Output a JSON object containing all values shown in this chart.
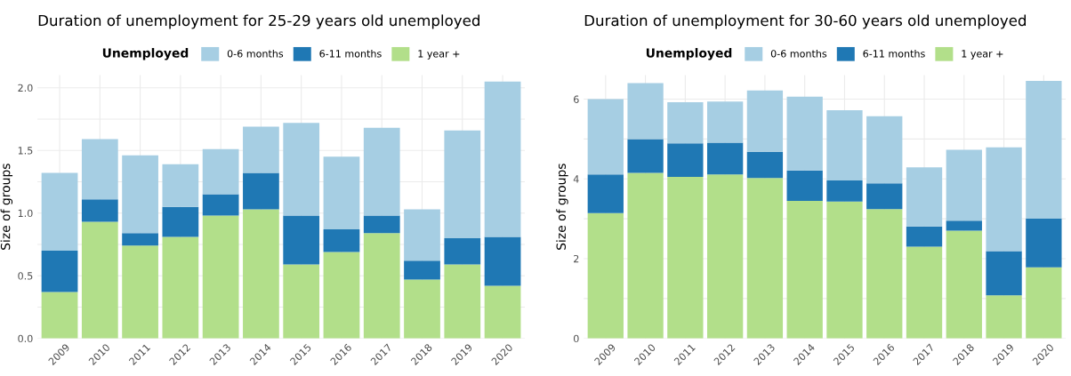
{
  "chart_data": [
    {
      "type": "bar",
      "title": "Duration of unemployment for 25-29 years old unemployed",
      "ylabel": "Size of groups",
      "legend_title": "Unemployed",
      "legend": "top",
      "stacked": true,
      "grid": true,
      "categories": [
        "2009",
        "2010",
        "2011",
        "2012",
        "2013",
        "2014",
        "2015",
        "2016",
        "2017",
        "2018",
        "2019",
        "2020"
      ],
      "series": [
        {
          "name": "1 year +",
          "color": "#b2df8a",
          "values": [
            0.37,
            0.93,
            0.74,
            0.81,
            0.98,
            1.03,
            0.59,
            0.69,
            0.84,
            0.47,
            0.59,
            0.42
          ]
        },
        {
          "name": "6-11 months",
          "color": "#1f78b4",
          "values": [
            0.33,
            0.18,
            0.1,
            0.24,
            0.17,
            0.29,
            0.39,
            0.18,
            0.14,
            0.15,
            0.21,
            0.39
          ]
        },
        {
          "name": "0-6 months",
          "color": "#a6cee3",
          "values": [
            0.62,
            0.48,
            0.62,
            0.34,
            0.36,
            0.37,
            0.74,
            0.58,
            0.7,
            0.41,
            0.86,
            1.24
          ]
        }
      ],
      "ylim": [
        0,
        2.1
      ],
      "yticks": [
        "0.0",
        {
          "value": 0.25,
          "label": null
        },
        {
          "value": 0.5,
          "label": "0.5"
        },
        {
          "value": 0.75,
          "label": null
        },
        {
          "value": 1.0,
          "label": "1.0"
        },
        {
          "value": 1.25,
          "label": null
        },
        {
          "value": 1.5,
          "label": "1.5"
        },
        {
          "value": 1.75,
          "label": null
        },
        {
          "value": 2.0,
          "label": "2.0"
        }
      ]
    },
    {
      "type": "bar",
      "title": "Duration of unemployment for 30-60 years old unemployed",
      "ylabel": "Size of groups",
      "legend_title": "Unemployed",
      "legend": "top",
      "stacked": true,
      "grid": true,
      "categories": [
        "2009",
        "2010",
        "2011",
        "2012",
        "2013",
        "2014",
        "2015",
        "2016",
        "2017",
        "2018",
        "2019",
        "2020"
      ],
      "series": [
        {
          "name": "1 year +",
          "color": "#b2df8a",
          "values": [
            3.14,
            4.15,
            4.05,
            4.11,
            4.02,
            3.45,
            3.43,
            3.24,
            2.3,
            2.7,
            1.08,
            1.78
          ]
        },
        {
          "name": "6-11 months",
          "color": "#1f78b4",
          "values": [
            0.97,
            0.85,
            0.84,
            0.8,
            0.66,
            0.76,
            0.53,
            0.65,
            0.51,
            0.25,
            1.11,
            1.22
          ]
        },
        {
          "name": "0-6 months",
          "color": "#a6cee3",
          "values": [
            1.89,
            1.4,
            1.03,
            1.03,
            1.54,
            1.85,
            1.76,
            1.68,
            1.48,
            1.78,
            2.6,
            3.46
          ]
        }
      ],
      "ylim": [
        0,
        6.6
      ],
      "yticks": [
        0,
        {
          "value": 1,
          "label": null
        },
        2,
        {
          "value": 3,
          "label": null
        },
        4,
        {
          "value": 5,
          "label": null
        },
        6
      ]
    }
  ]
}
